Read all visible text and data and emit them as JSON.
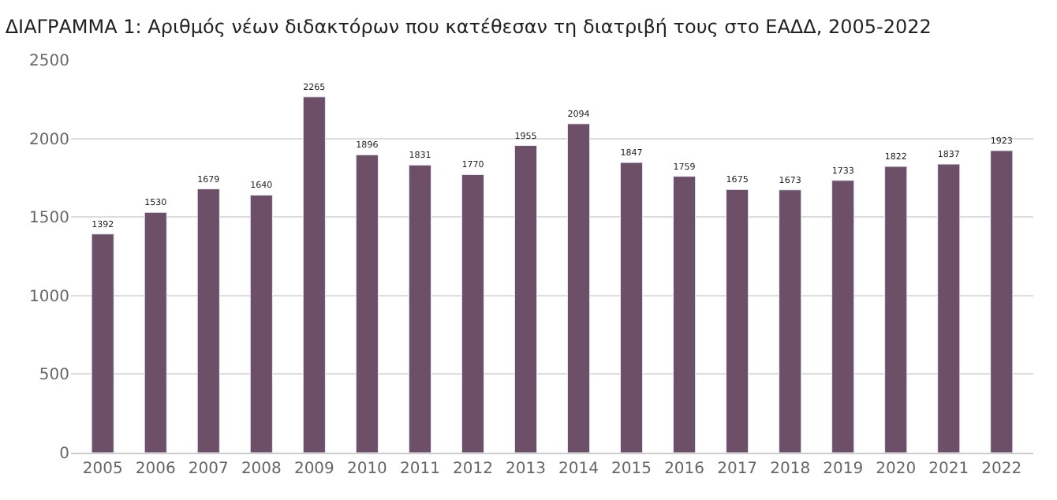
{
  "chart_data": {
    "type": "bar",
    "title": "ΔΙΑΓΡΑΜΜΑ 1: Αριθμός νέων διδακτόρων που κατέθεσαν τη διατριβή τους στο ΕΑΔΔ, 2005-2022",
    "categories": [
      "2005",
      "2006",
      "2007",
      "2008",
      "2009",
      "2010",
      "2011",
      "2012",
      "2013",
      "2014",
      "2015",
      "2016",
      "2017",
      "2018",
      "2019",
      "2020",
      "2021",
      "2022"
    ],
    "values": [
      1392,
      1530,
      1679,
      1640,
      2265,
      1896,
      1831,
      1770,
      1955,
      2094,
      1847,
      1759,
      1675,
      1673,
      1733,
      1822,
      1837,
      1923
    ],
    "color": "#6d5068",
    "ylim": [
      0,
      2500
    ],
    "yticks": [
      0,
      500,
      1000,
      1500,
      2000,
      2500
    ],
    "grid": "y",
    "data_labels": true
  }
}
